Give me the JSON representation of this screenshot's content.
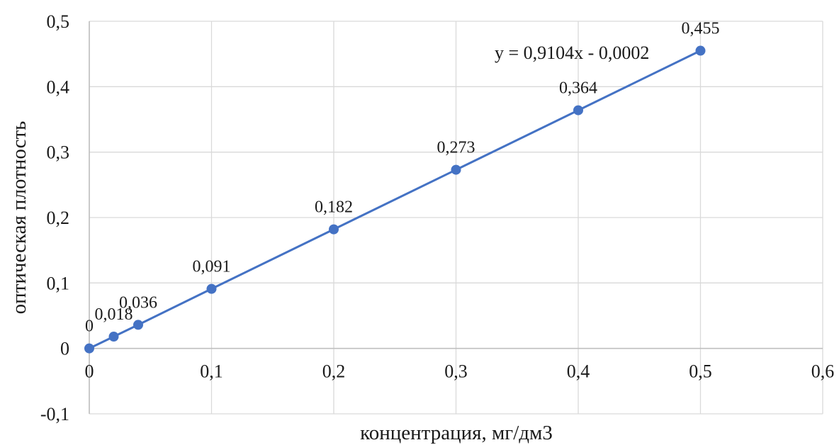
{
  "chart_data": {
    "type": "scatter",
    "xlabel": "концентрация, мг/дм3",
    "ylabel": "оптическая плотность",
    "xlim": [
      0,
      0.6
    ],
    "ylim": [
      -0.1,
      0.5
    ],
    "x_ticks": [
      0,
      0.1,
      0.2,
      0.3,
      0.4,
      0.5,
      0.6
    ],
    "y_ticks": [
      -0.1,
      0,
      0.1,
      0.2,
      0.3,
      0.4,
      0.5
    ],
    "x_tick_labels": [
      "0",
      "0,1",
      "0,2",
      "0,3",
      "0,4",
      "0,5",
      "0,6"
    ],
    "y_tick_labels": [
      "-0,1",
      "0",
      "0,1",
      "0,2",
      "0,3",
      "0,4",
      "0,5"
    ],
    "grid": true,
    "series": [
      {
        "color": "#4472c4",
        "x": [
          0,
          0.02,
          0.04,
          0.1,
          0.2,
          0.3,
          0.4,
          0.5
        ],
        "y": [
          0,
          0.018,
          0.036,
          0.091,
          0.182,
          0.273,
          0.364,
          0.455
        ],
        "labels": [
          "0",
          "0,018",
          "0,036",
          "0,091",
          "0,182",
          "0,273",
          "0,364",
          "0,455"
        ]
      }
    ],
    "trendline": {
      "equation": "y = 0,9104x - 0,0002",
      "slope": 0.9104,
      "intercept": -0.0002
    }
  }
}
